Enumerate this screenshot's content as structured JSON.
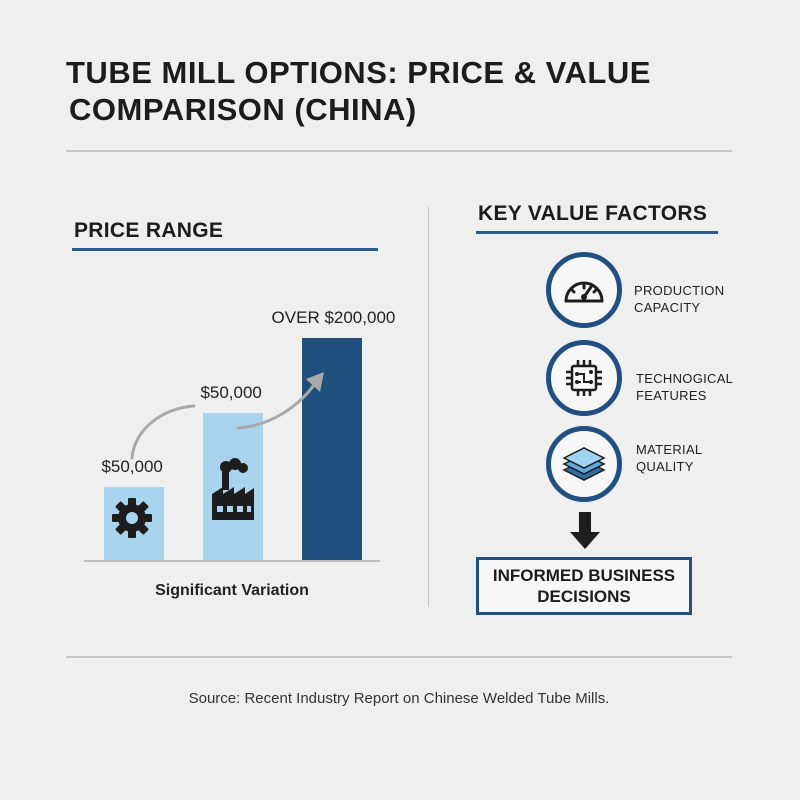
{
  "title": {
    "line1": "TUBE MILL OPTIONS: PRICE & VALUE",
    "line2": "COMPARISON (CHINA)"
  },
  "price_range": {
    "heading": "PRICE RANGE",
    "caption": "Significant Variation"
  },
  "chart_data": {
    "type": "bar",
    "categories": [
      "",
      "",
      ""
    ],
    "values": [
      50000,
      50000,
      200000
    ],
    "data_labels": [
      "$50,000",
      "$50,000",
      "OVER $200,000"
    ],
    "icons": [
      "gear-icon",
      "factory-icon",
      ""
    ],
    "colors": [
      "#a8d4ee",
      "#a8d4ee",
      "#1f4f7c"
    ],
    "grid": false,
    "legend": "none"
  },
  "key_value_factors": {
    "heading": "KEY VALUE FACTORS",
    "items": [
      {
        "icon": "gauge-icon",
        "line1": "PRODUCTION",
        "line2": "CAPACITY"
      },
      {
        "icon": "chip-icon",
        "line1": "TECHNOGICAL",
        "line2": "FEATURES"
      },
      {
        "icon": "layers-icon",
        "line1": "MATERIAL",
        "line2": "QUALITY"
      }
    ],
    "outcome_line1": "INFORMED BUSINESS",
    "outcome_line2": "DECISIONS"
  },
  "source": "Source: Recent Industry Report on Chinese Welded Tube Mills.",
  "colors": {
    "accent_dark": "#1f4f7c",
    "accent_light": "#a8d4ee",
    "background": "#efefef"
  }
}
